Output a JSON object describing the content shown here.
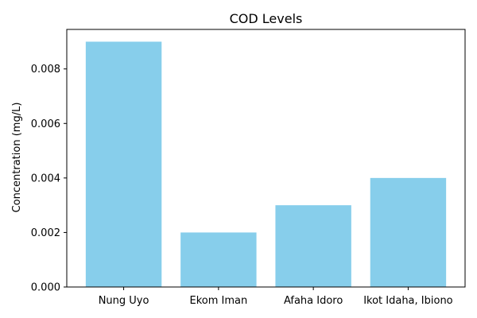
{
  "chart_data": {
    "type": "bar",
    "title": "COD Levels",
    "xlabel": "",
    "ylabel": "Concentration (mg/L)",
    "categories": [
      "Nung Uyo",
      "Ekom Iman",
      "Afaha Idoro",
      "Ikot Idaha, Ibiono"
    ],
    "values": [
      0.009,
      0.002,
      0.003,
      0.004
    ],
    "ylim": [
      0,
      0.00945
    ],
    "yticks": [
      0.0,
      0.002,
      0.004,
      0.006,
      0.008
    ],
    "ytick_labels": [
      "0.000",
      "0.002",
      "0.004",
      "0.006",
      "0.008"
    ],
    "bar_color": "#87ceeb",
    "grid": false,
    "legend": "none"
  }
}
